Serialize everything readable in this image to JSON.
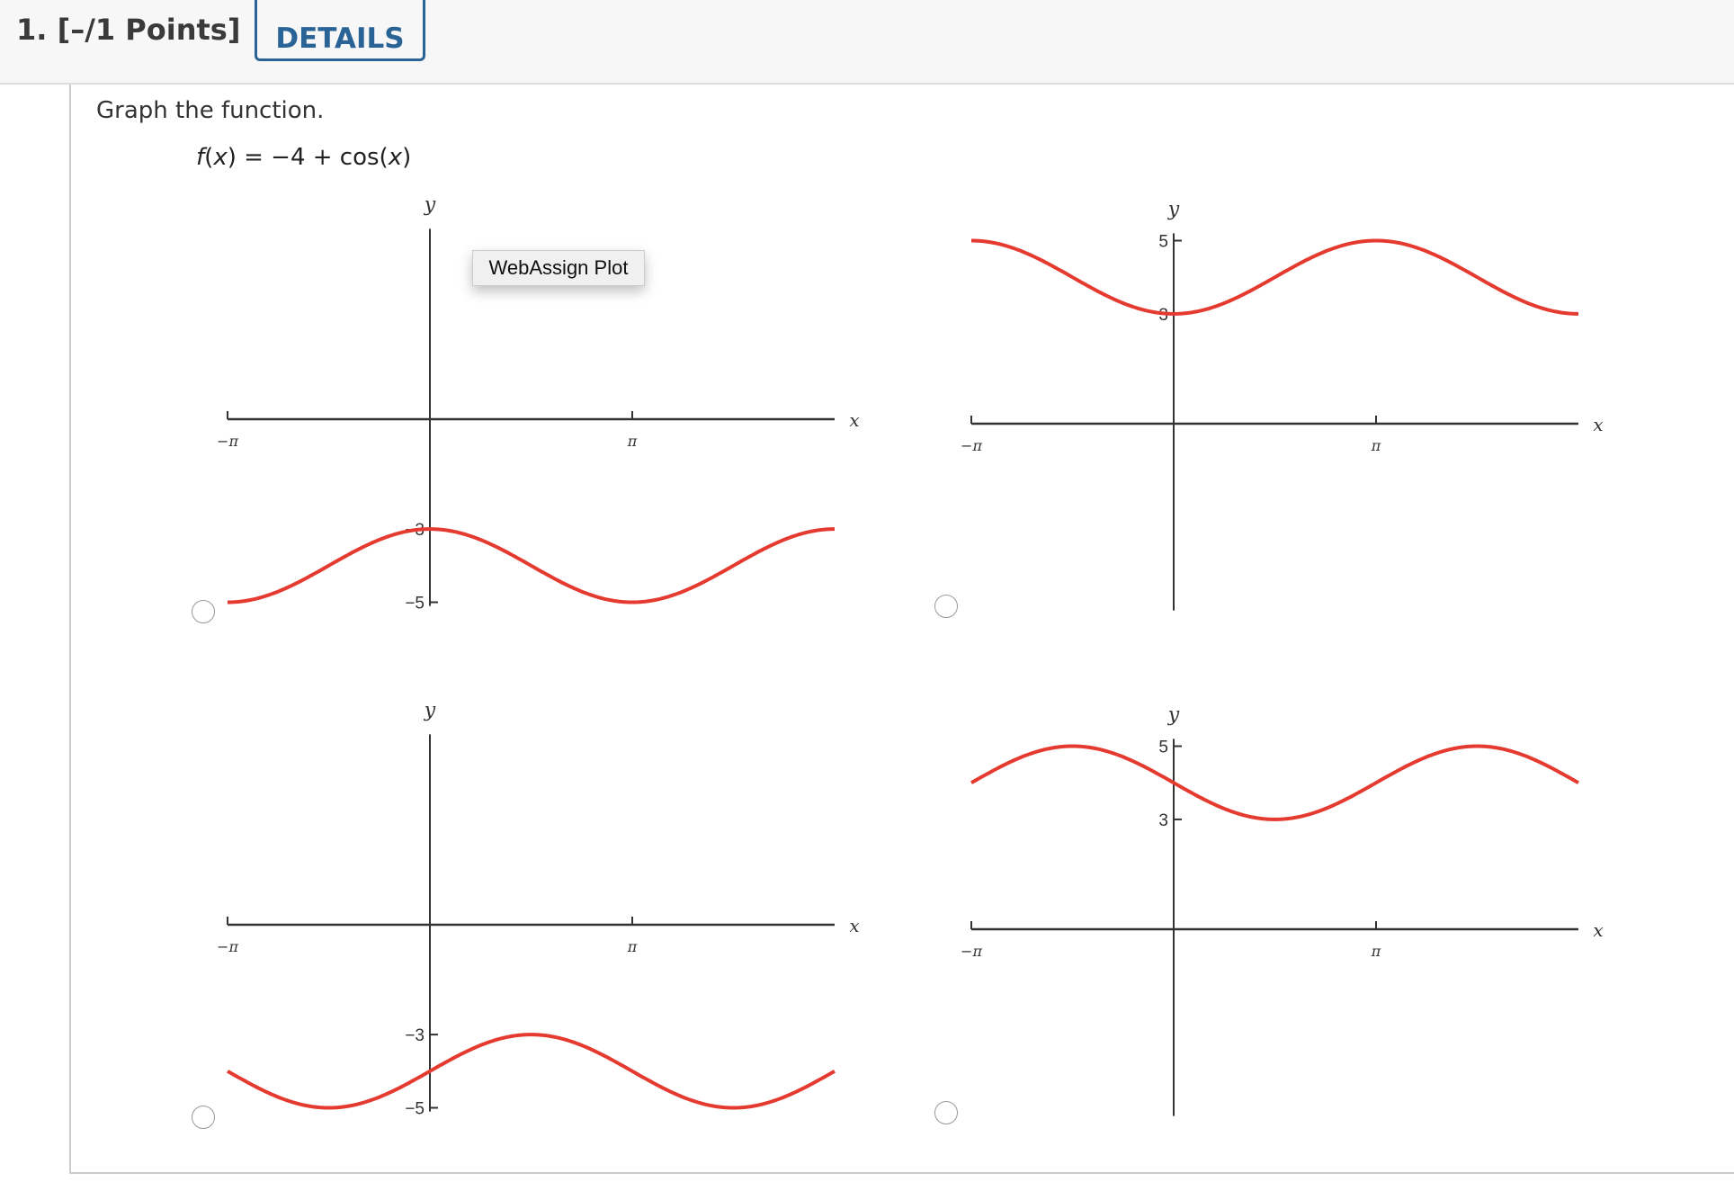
{
  "header": {
    "question_label": "1. [–/1 Points]",
    "details_label": "DETAILS"
  },
  "question": {
    "prompt": "Graph the function.",
    "formula": {
      "f": "f",
      "open": "(",
      "x": "x",
      "rest": ") = −4 + cos(",
      "x2": "x",
      "close": ")"
    }
  },
  "tooltip": "WebAssign Plot",
  "colors": {
    "curve": "#e53a2f",
    "axis": "#333333",
    "accent": "#2a6496"
  },
  "chart_data": [
    {
      "type": "line",
      "option": 1,
      "function": {
        "offset": -4,
        "cos": 1,
        "sin": 0
      },
      "xlim": [
        -3.14159,
        6.28318
      ],
      "ylim": [
        -5,
        5
      ],
      "xticks": [
        {
          "value": -3.14159,
          "label": "−π"
        },
        {
          "value": 3.14159,
          "label": "π"
        }
      ],
      "yticks": [
        {
          "value": -3,
          "label": "−3"
        },
        {
          "value": -5,
          "label": "−5"
        }
      ],
      "xlabel": "x",
      "ylabel": "y"
    },
    {
      "type": "line",
      "option": 2,
      "function": {
        "offset": 4,
        "cos": -1,
        "sin": 0
      },
      "xlim": [
        -3.14159,
        6.28318
      ],
      "ylim": [
        -5,
        5
      ],
      "xticks": [
        {
          "value": -3.14159,
          "label": "−π"
        },
        {
          "value": 3.14159,
          "label": "π"
        }
      ],
      "yticks": [
        {
          "value": 5,
          "label": "5"
        },
        {
          "value": 3,
          "label": "3"
        }
      ],
      "xlabel": "x",
      "ylabel": "y"
    },
    {
      "type": "line",
      "option": 3,
      "function": {
        "offset": -4,
        "cos": 0,
        "sin": 1
      },
      "xlim": [
        -3.14159,
        6.28318
      ],
      "ylim": [
        -5,
        5
      ],
      "xticks": [
        {
          "value": -3.14159,
          "label": "−π"
        },
        {
          "value": 3.14159,
          "label": "π"
        }
      ],
      "yticks": [
        {
          "value": -3,
          "label": "−3"
        },
        {
          "value": -5,
          "label": "−5"
        }
      ],
      "xlabel": "x",
      "ylabel": "y"
    },
    {
      "type": "line",
      "option": 4,
      "function": {
        "offset": 4,
        "cos": 0,
        "sin": -1
      },
      "xlim": [
        -3.14159,
        6.28318
      ],
      "ylim": [
        -5,
        5
      ],
      "xticks": [
        {
          "value": -3.14159,
          "label": "−π"
        },
        {
          "value": 3.14159,
          "label": "π"
        }
      ],
      "yticks": [
        {
          "value": 5,
          "label": "5"
        },
        {
          "value": 3,
          "label": "3"
        }
      ],
      "xlabel": "x",
      "ylabel": "y"
    }
  ]
}
